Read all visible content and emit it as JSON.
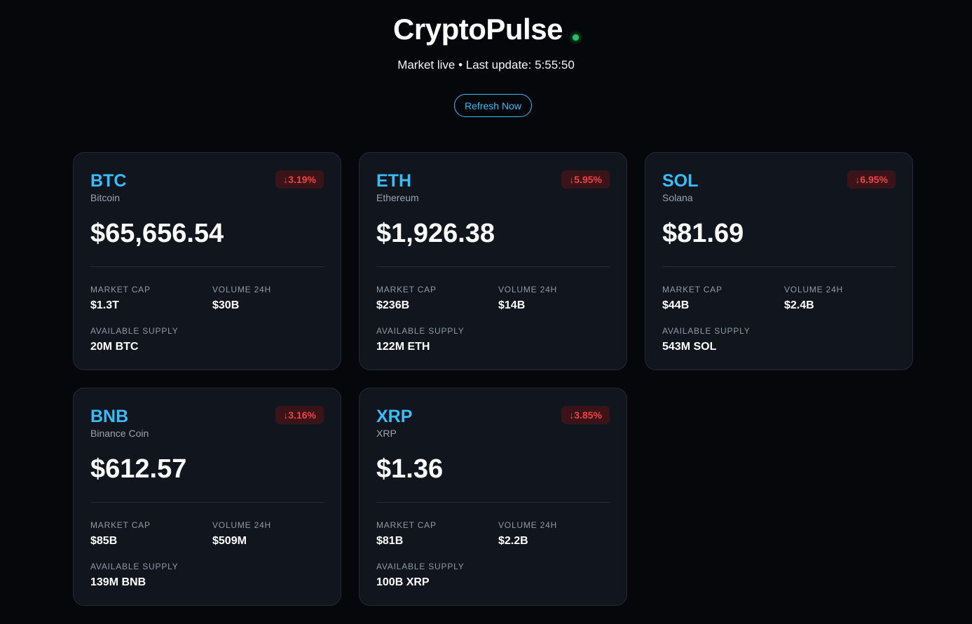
{
  "header": {
    "title": "CryptoPulse",
    "status_text": "Market live • Last update: 5:55:50",
    "refresh_label": "Refresh Now"
  },
  "labels": {
    "market_cap": "MARKET CAP",
    "volume": "VOLUME 24H",
    "supply": "AVAILABLE SUPPLY"
  },
  "colors": {
    "accent": "#38bdf8",
    "negative": "#ef4444",
    "live": "#22c55e",
    "background": "#05070b",
    "card": "#11151d"
  },
  "coins": [
    {
      "symbol": "BTC",
      "name": "Bitcoin",
      "change": "↓3.19%",
      "price": "$65,656.54",
      "market_cap": "$1.3T",
      "volume": "$30B",
      "supply": "20M BTC"
    },
    {
      "symbol": "ETH",
      "name": "Ethereum",
      "change": "↓5.95%",
      "price": "$1,926.38",
      "market_cap": "$236B",
      "volume": "$14B",
      "supply": "122M ETH"
    },
    {
      "symbol": "SOL",
      "name": "Solana",
      "change": "↓6.95%",
      "price": "$81.69",
      "market_cap": "$44B",
      "volume": "$2.4B",
      "supply": "543M SOL"
    },
    {
      "symbol": "BNB",
      "name": "Binance Coin",
      "change": "↓3.16%",
      "price": "$612.57",
      "market_cap": "$85B",
      "volume": "$509M",
      "supply": "139M BNB"
    },
    {
      "symbol": "XRP",
      "name": "XRP",
      "change": "↓3.85%",
      "price": "$1.36",
      "market_cap": "$81B",
      "volume": "$2.2B",
      "supply": "100B XRP"
    }
  ]
}
